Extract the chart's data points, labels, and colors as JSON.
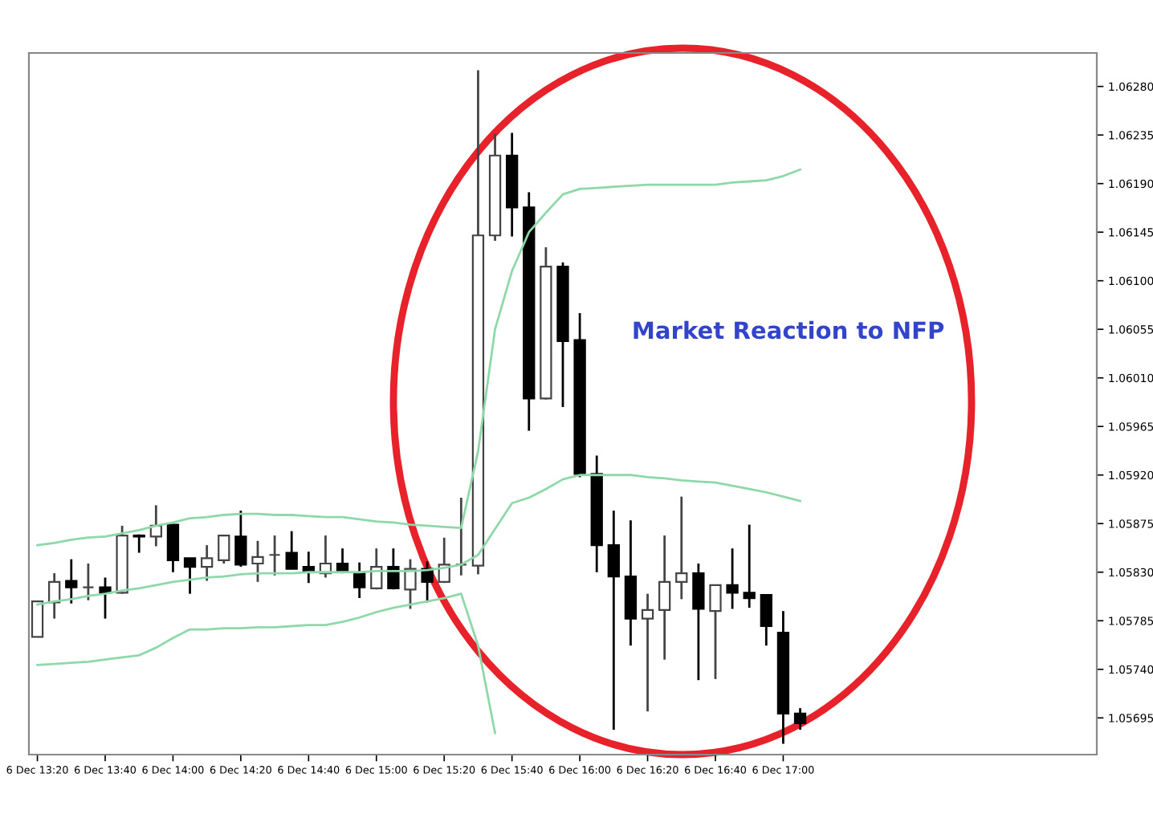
{
  "chart_data": {
    "type": "candlestick",
    "categories": [
      "6 Dec 13:20",
      null,
      null,
      null,
      "6 Dec 13:40",
      null,
      null,
      null,
      "6 Dec 14:00",
      null,
      null,
      null,
      "6 Dec 14:20",
      null,
      null,
      null,
      "6 Dec 14:40",
      null,
      null,
      null,
      "6 Dec 15:00",
      null,
      null,
      null,
      "6 Dec 15:20",
      null,
      null,
      null,
      "6 Dec 15:40",
      null,
      null,
      null,
      "6 Dec 16:00",
      null,
      null,
      null,
      "6 Dec 16:20",
      null,
      null,
      null,
      "6 Dec 16:40",
      null,
      null,
      null,
      "6 Dec 17:00",
      null,
      null,
      null,
      null,
      null,
      null,
      null,
      null,
      null,
      null,
      null,
      null,
      null,
      null,
      null,
      null,
      null,
      null
    ],
    "ohlc": [
      [
        1.0577,
        1.05803,
        1.0577,
        1.05803
      ],
      [
        1.05802,
        1.05829,
        1.05787,
        1.05821
      ],
      [
        1.05822,
        1.05842,
        1.05801,
        1.05816
      ],
      [
        1.05816,
        1.05838,
        1.05804,
        1.05816
      ],
      [
        1.05816,
        1.05825,
        1.05787,
        1.05811
      ],
      [
        1.05811,
        1.05873,
        1.0581,
        1.05864
      ],
      [
        1.05864,
        1.05865,
        1.05848,
        1.05863
      ],
      [
        1.05863,
        1.05892,
        1.05854,
        1.05873
      ],
      [
        1.05874,
        1.05874,
        1.0583,
        1.05841
      ],
      [
        1.05843,
        1.05843,
        1.0581,
        1.05835
      ],
      [
        1.05835,
        1.05855,
        1.05822,
        1.05843
      ],
      [
        1.05841,
        1.05864,
        1.05838,
        1.05864
      ],
      [
        1.05863,
        1.05887,
        1.05835,
        1.05837
      ],
      [
        1.05838,
        1.05859,
        1.05821,
        1.05844
      ],
      [
        1.05846,
        1.05864,
        1.05827,
        1.05846
      ],
      [
        1.05848,
        1.05868,
        1.05833,
        1.05833
      ],
      [
        1.05835,
        1.05849,
        1.0582,
        1.0583
      ],
      [
        1.05829,
        1.05864,
        1.05825,
        1.05838
      ],
      [
        1.05838,
        1.05852,
        1.05829,
        1.05831
      ],
      [
        1.05829,
        1.05839,
        1.05806,
        1.05816
      ],
      [
        1.05815,
        1.05852,
        1.05814,
        1.05835
      ],
      [
        1.05835,
        1.05852,
        1.05814,
        1.05815
      ],
      [
        1.05814,
        1.05842,
        1.05796,
        1.05833
      ],
      [
        1.05833,
        1.0584,
        1.05802,
        1.05821
      ],
      [
        1.05821,
        1.05862,
        1.0582,
        1.05837
      ],
      [
        1.05837,
        1.05899,
        1.05827,
        1.05837
      ],
      [
        1.05836,
        1.06295,
        1.05828,
        1.06142
      ],
      [
        1.06142,
        1.06236,
        1.06137,
        1.06216
      ],
      [
        1.06216,
        1.06237,
        1.06141,
        1.06168
      ],
      [
        1.06168,
        1.06182,
        1.05961,
        1.05991
      ],
      [
        1.05991,
        1.06131,
        1.0599,
        1.06113
      ],
      [
        1.06113,
        1.06117,
        1.05983,
        1.06044
      ],
      [
        1.06045,
        1.0607,
        1.05918,
        1.05921
      ],
      [
        1.05921,
        1.05938,
        1.0583,
        1.05855
      ],
      [
        1.05855,
        1.05887,
        1.05684,
        1.05826
      ],
      [
        1.05826,
        1.05878,
        1.05762,
        1.05787
      ],
      [
        1.05787,
        1.0581,
        1.05701,
        1.05795
      ],
      [
        1.05795,
        1.05864,
        1.05749,
        1.05821
      ],
      [
        1.05821,
        1.059,
        1.05805,
        1.05829
      ],
      [
        1.05829,
        1.05838,
        1.0573,
        1.05796
      ],
      [
        1.05794,
        1.05818,
        1.05731,
        1.05818
      ],
      [
        1.05818,
        1.05852,
        1.05796,
        1.05811
      ],
      [
        1.05811,
        1.05874,
        1.05797,
        1.05806
      ],
      [
        1.05809,
        1.05809,
        1.05762,
        1.0578
      ],
      [
        1.05774,
        1.05794,
        1.05671,
        1.05699
      ],
      [
        1.05699,
        1.05704,
        1.05684,
        1.0569
      ],
      null,
      null,
      null,
      null,
      null,
      null,
      null,
      null,
      null,
      null,
      null,
      null,
      null,
      null,
      null,
      null,
      null
    ],
    "series": [
      {
        "type": "line",
        "color": "#8ed8aa",
        "values": [
          1.05855,
          1.05857,
          1.0586,
          1.05862,
          1.05863,
          1.05866,
          1.05869,
          1.05873,
          1.05876,
          1.0588,
          1.05881,
          1.05883,
          1.05884,
          1.05884,
          1.05883,
          1.05883,
          1.05882,
          1.05881,
          1.05881,
          1.05879,
          1.05877,
          1.05876,
          1.05874,
          1.05873,
          1.05872,
          1.05871,
          1.05942,
          1.06055,
          1.06109,
          1.06145,
          1.06163,
          1.0618,
          1.06185,
          1.06186,
          1.06187,
          1.06188,
          1.06189,
          1.06189,
          1.06189,
          1.06189,
          1.06189,
          1.06191,
          1.06192,
          1.06193,
          1.06197,
          1.06203,
          null,
          null,
          null,
          null,
          null,
          null,
          null,
          null,
          null,
          null,
          null,
          null,
          null,
          null,
          null,
          null,
          null
        ]
      },
      {
        "type": "line",
        "color": "#8ed8aa",
        "values": [
          1.058,
          1.05803,
          1.05805,
          1.05808,
          1.0581,
          1.05813,
          1.05815,
          1.05818,
          1.05821,
          1.05823,
          1.05825,
          1.05826,
          1.05828,
          1.05829,
          1.05829,
          1.05829,
          1.0583,
          1.0583,
          1.0583,
          1.0583,
          1.05831,
          1.05831,
          1.05831,
          1.05832,
          1.05834,
          1.05837,
          1.05846,
          1.0587,
          1.05894,
          1.05899,
          1.05907,
          1.05916,
          1.0592,
          1.0592,
          1.0592,
          1.0592,
          1.05918,
          1.05917,
          1.05915,
          1.05914,
          1.05913,
          1.0591,
          1.05907,
          1.05904,
          1.059,
          1.05896,
          null,
          null,
          null,
          null,
          null,
          null,
          null,
          null,
          null,
          null,
          null,
          null,
          null,
          null,
          null,
          null,
          null
        ]
      },
      {
        "type": "line",
        "color": "#8ed8aa",
        "values": [
          1.05744,
          1.05745,
          1.05746,
          1.05747,
          1.05749,
          1.05751,
          1.05753,
          1.0576,
          1.05769,
          1.05777,
          1.05777,
          1.05778,
          1.05778,
          1.05779,
          1.05779,
          1.0578,
          1.05781,
          1.05781,
          1.05784,
          1.05788,
          1.05793,
          1.05797,
          1.058,
          1.05803,
          1.05806,
          1.0581,
          1.05762,
          1.05681,
          null,
          null,
          null,
          null,
          null,
          null,
          null,
          null,
          null,
          null,
          null,
          null,
          null,
          null,
          null,
          null,
          null,
          null,
          null,
          null,
          null,
          null,
          null,
          null,
          null,
          null,
          null,
          null,
          null,
          null,
          null,
          null,
          null,
          null,
          null
        ]
      }
    ],
    "ylim": [
      1.05661,
      1.06311
    ],
    "yticks": [
      {
        "value": 1.0628,
        "label": "1.06280"
      },
      1.06235,
      {
        "value": 1.0619,
        "label": "1.06190"
      },
      1.06145,
      {
        "value": 1.061,
        "label": "1.06100"
      },
      1.06055,
      {
        "value": 1.0601,
        "label": "1.06010"
      },
      1.05965,
      {
        "value": 1.0592,
        "label": "1.05920"
      },
      1.05875,
      {
        "value": 1.0583,
        "label": "1.05830"
      },
      1.05785,
      {
        "value": 1.0574,
        "label": "1.05740"
      },
      1.05695
    ],
    "annotations": [
      "Market Reaction to NFP"
    ],
    "grid": false,
    "legend": false
  }
}
